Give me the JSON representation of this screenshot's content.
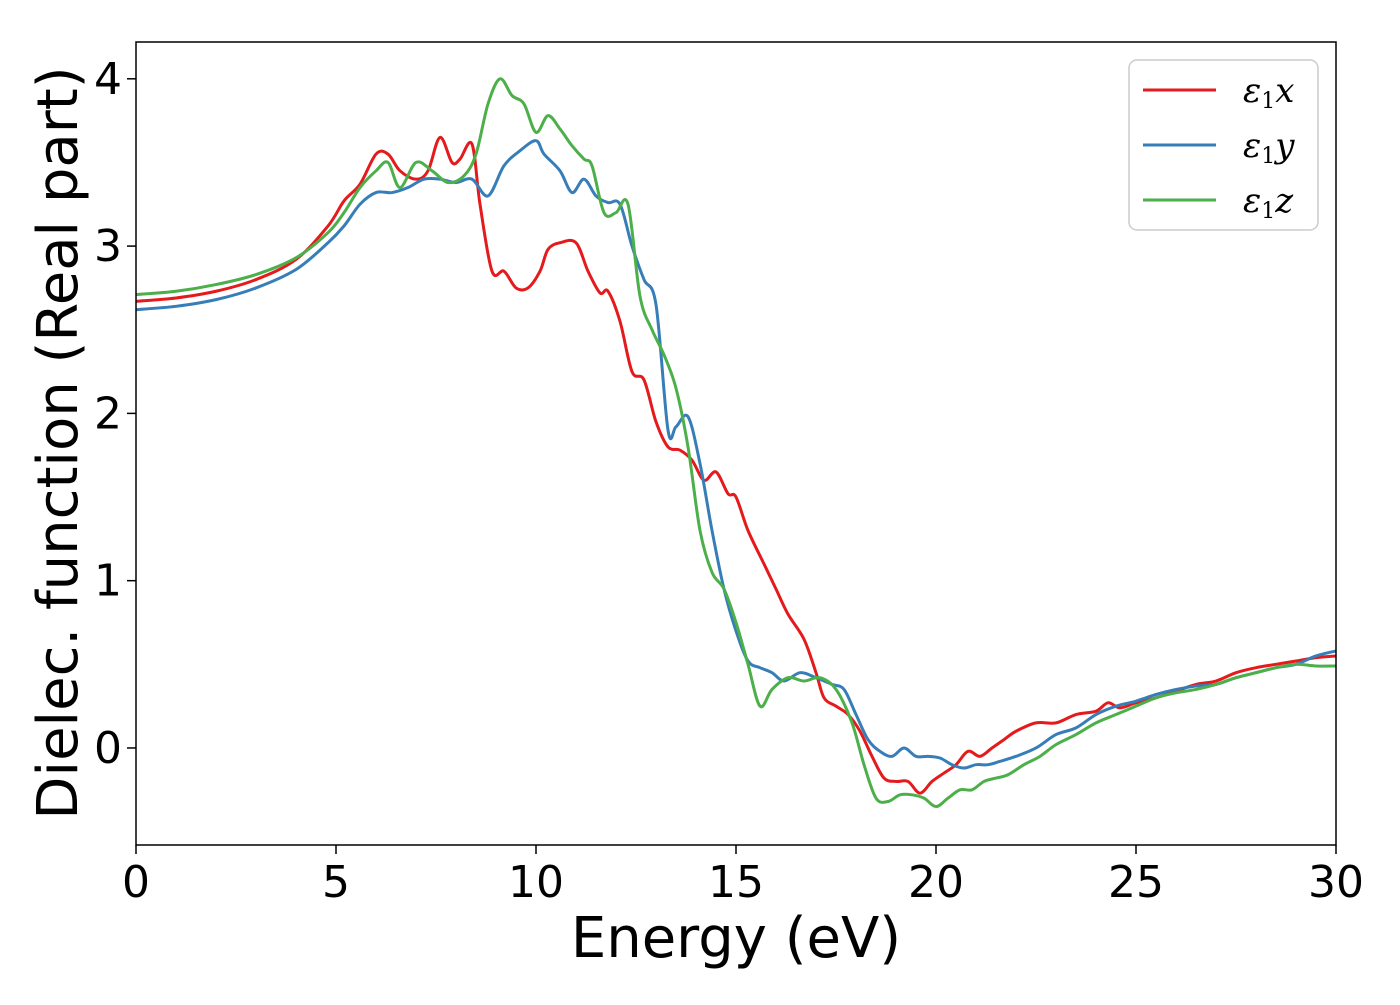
{
  "chart_data": {
    "type": "line",
    "xlabel": "Energy (eV)",
    "ylabel": "Dielec. function (Real part)",
    "xlim": [
      0,
      30
    ],
    "ylim": [
      -0.58,
      4.22
    ],
    "xticks": [
      0,
      5,
      10,
      15,
      20,
      25,
      30
    ],
    "yticks": [
      0,
      1,
      2,
      3,
      4
    ],
    "grid": false,
    "legend_position": "top-right",
    "series": [
      {
        "name": "ε1x",
        "legend_main": "ε",
        "legend_sub": "1",
        "legend_var": "x",
        "color": "#e41a1c",
        "x": [
          0,
          1,
          2,
          3,
          4,
          4.8,
          5.2,
          5.6,
          6.0,
          6.3,
          6.6,
          7.0,
          7.3,
          7.6,
          7.9,
          8.1,
          8.4,
          8.6,
          8.9,
          9.2,
          9.5,
          9.8,
          10.1,
          10.3,
          10.6,
          11.0,
          11.3,
          11.6,
          11.8,
          12.1,
          12.4,
          12.7,
          13.0,
          13.3,
          13.6,
          13.9,
          14.2,
          14.5,
          14.8,
          15.0,
          15.3,
          15.7,
          16.0,
          16.3,
          16.7,
          17.0,
          17.2,
          17.5,
          17.8,
          18.1,
          18.4,
          18.7,
          19.0,
          19.3,
          19.6,
          19.9,
          20.2,
          20.5,
          20.8,
          21.1,
          21.4,
          21.7,
          22.0,
          22.5,
          23.0,
          23.5,
          24.0,
          24.3,
          24.6,
          25.0,
          25.5,
          26.0,
          26.5,
          27.0,
          27.5,
          28.0,
          28.5,
          29.0,
          29.5,
          30.0
        ],
        "y": [
          2.67,
          2.69,
          2.73,
          2.8,
          2.92,
          3.12,
          3.27,
          3.37,
          3.55,
          3.55,
          3.45,
          3.4,
          3.45,
          3.65,
          3.5,
          3.52,
          3.61,
          3.25,
          2.85,
          2.85,
          2.75,
          2.75,
          2.85,
          2.98,
          3.02,
          3.02,
          2.85,
          2.72,
          2.73,
          2.55,
          2.25,
          2.2,
          1.95,
          1.8,
          1.78,
          1.72,
          1.6,
          1.65,
          1.52,
          1.5,
          1.3,
          1.1,
          0.95,
          0.8,
          0.65,
          0.45,
          0.3,
          0.25,
          0.2,
          0.1,
          -0.05,
          -0.18,
          -0.2,
          -0.2,
          -0.27,
          -0.2,
          -0.15,
          -0.1,
          -0.02,
          -0.05,
          0.0,
          0.05,
          0.1,
          0.15,
          0.15,
          0.2,
          0.22,
          0.27,
          0.24,
          0.27,
          0.3,
          0.34,
          0.38,
          0.4,
          0.45,
          0.48,
          0.5,
          0.52,
          0.54,
          0.55
        ]
      },
      {
        "name": "ε1y",
        "legend_main": "ε",
        "legend_sub": "1",
        "legend_var": "y",
        "color": "#377eb8",
        "x": [
          0,
          1,
          2,
          3,
          4,
          4.8,
          5.2,
          5.6,
          6.0,
          6.4,
          6.8,
          7.2,
          7.6,
          8.0,
          8.4,
          8.8,
          9.2,
          9.6,
          10.0,
          10.2,
          10.6,
          10.9,
          11.2,
          11.5,
          11.8,
          12.1,
          12.4,
          12.7,
          13.0,
          13.3,
          13.5,
          13.8,
          14.1,
          14.4,
          14.7,
          15.0,
          15.3,
          15.6,
          15.9,
          16.2,
          16.6,
          17.0,
          17.4,
          17.7,
          18.0,
          18.3,
          18.6,
          18.9,
          19.2,
          19.5,
          19.8,
          20.1,
          20.4,
          20.7,
          21.0,
          21.3,
          21.6,
          22.0,
          22.5,
          23.0,
          23.5,
          24.0,
          24.5,
          25.0,
          25.5,
          26.0,
          26.5,
          27.0,
          27.5,
          28.0,
          28.5,
          29.0,
          29.5,
          30.0
        ],
        "y": [
          2.62,
          2.64,
          2.68,
          2.75,
          2.86,
          3.02,
          3.12,
          3.25,
          3.32,
          3.32,
          3.35,
          3.4,
          3.4,
          3.38,
          3.4,
          3.3,
          3.48,
          3.57,
          3.63,
          3.55,
          3.45,
          3.32,
          3.4,
          3.3,
          3.26,
          3.25,
          3.0,
          2.8,
          2.65,
          1.9,
          1.92,
          1.98,
          1.7,
          1.3,
          0.95,
          0.7,
          0.52,
          0.48,
          0.45,
          0.4,
          0.45,
          0.42,
          0.38,
          0.35,
          0.2,
          0.05,
          -0.02,
          -0.05,
          0.0,
          -0.05,
          -0.05,
          -0.06,
          -0.1,
          -0.12,
          -0.1,
          -0.1,
          -0.08,
          -0.05,
          0.0,
          0.08,
          0.12,
          0.2,
          0.25,
          0.28,
          0.32,
          0.35,
          0.37,
          0.38,
          0.42,
          0.45,
          0.48,
          0.5,
          0.55,
          0.58
        ]
      },
      {
        "name": "ε1z",
        "legend_main": "ε",
        "legend_sub": "1",
        "legend_var": "z",
        "color": "#4daf4a",
        "x": [
          0,
          1,
          2,
          3,
          4,
          4.8,
          5.2,
          5.6,
          6.0,
          6.3,
          6.6,
          7.0,
          7.4,
          7.8,
          8.2,
          8.5,
          8.8,
          9.1,
          9.4,
          9.7,
          10.0,
          10.3,
          10.6,
          10.9,
          11.2,
          11.4,
          11.7,
          12.0,
          12.3,
          12.6,
          12.9,
          13.2,
          13.5,
          13.8,
          14.1,
          14.4,
          14.7,
          15.0,
          15.3,
          15.6,
          15.9,
          16.3,
          16.7,
          17.1,
          17.5,
          17.9,
          18.2,
          18.5,
          18.8,
          19.1,
          19.4,
          19.7,
          20.0,
          20.3,
          20.6,
          20.9,
          21.2,
          21.5,
          21.8,
          22.2,
          22.6,
          23.0,
          23.5,
          24.0,
          24.5,
          25.0,
          25.5,
          26.0,
          26.5,
          27.0,
          27.5,
          28.0,
          28.5,
          29.0,
          29.5,
          30.0
        ],
        "y": [
          2.71,
          2.73,
          2.77,
          2.83,
          2.93,
          3.08,
          3.2,
          3.35,
          3.45,
          3.5,
          3.35,
          3.5,
          3.45,
          3.38,
          3.42,
          3.55,
          3.85,
          4.0,
          3.9,
          3.85,
          3.68,
          3.78,
          3.7,
          3.6,
          3.52,
          3.48,
          3.2,
          3.2,
          3.25,
          2.7,
          2.5,
          2.35,
          2.15,
          1.8,
          1.3,
          1.05,
          0.95,
          0.75,
          0.5,
          0.25,
          0.35,
          0.42,
          0.4,
          0.42,
          0.35,
          0.15,
          -0.1,
          -0.3,
          -0.32,
          -0.28,
          -0.28,
          -0.3,
          -0.35,
          -0.3,
          -0.25,
          -0.25,
          -0.2,
          -0.18,
          -0.16,
          -0.1,
          -0.05,
          0.02,
          0.08,
          0.15,
          0.2,
          0.25,
          0.3,
          0.33,
          0.35,
          0.38,
          0.42,
          0.45,
          0.48,
          0.5,
          0.49,
          0.49
        ]
      }
    ]
  }
}
